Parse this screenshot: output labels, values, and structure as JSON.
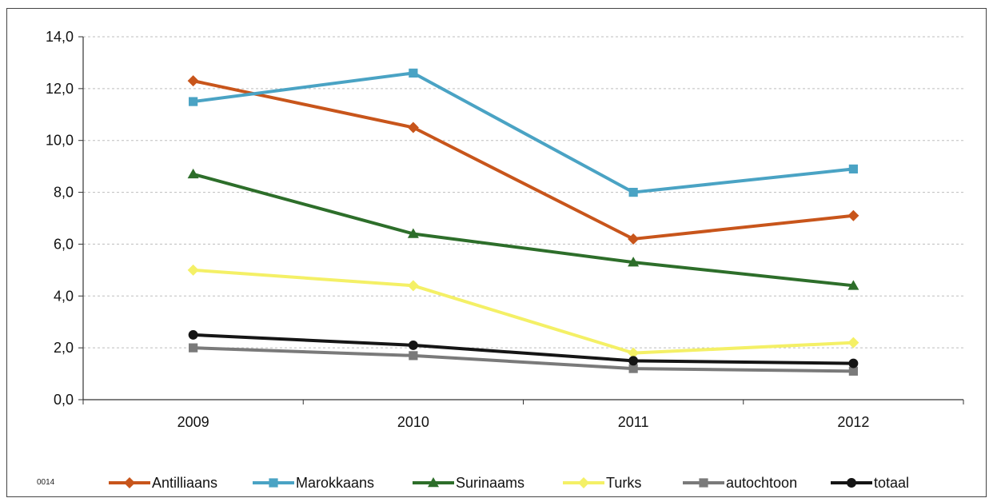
{
  "chart_data": {
    "type": "line",
    "title": "",
    "xlabel": "",
    "ylabel": "",
    "categories": [
      "2009",
      "2010",
      "2011",
      "2012"
    ],
    "ylim": [
      0,
      14
    ],
    "y_ticks": [
      "0,0",
      "2,0",
      "4,0",
      "6,0",
      "8,0",
      "10,0",
      "12,0",
      "14,0"
    ],
    "grid": "horizontal dashed",
    "legend_position": "bottom",
    "series": [
      {
        "name": "Antilliaans",
        "values": [
          12.3,
          10.5,
          6.2,
          7.1
        ],
        "color": "#c8551b",
        "marker": "diamond"
      },
      {
        "name": "Marokkaans",
        "values": [
          11.5,
          12.6,
          8.0,
          8.9
        ],
        "color": "#4aa3c4",
        "marker": "square"
      },
      {
        "name": "Surinaams",
        "values": [
          8.7,
          6.4,
          5.3,
          4.4
        ],
        "color": "#2d6e2a",
        "marker": "triangle"
      },
      {
        "name": "Turks",
        "values": [
          5.0,
          4.4,
          1.8,
          2.2
        ],
        "color": "#f4f066",
        "marker": "diamond"
      },
      {
        "name": "autochtoon",
        "values": [
          2.0,
          1.7,
          1.2,
          1.1
        ],
        "color": "#7a7a7a",
        "marker": "square"
      },
      {
        "name": "totaal",
        "values": [
          2.5,
          2.1,
          1.5,
          1.4
        ],
        "color": "#151515",
        "marker": "circle"
      }
    ]
  },
  "footer_code": "0014"
}
